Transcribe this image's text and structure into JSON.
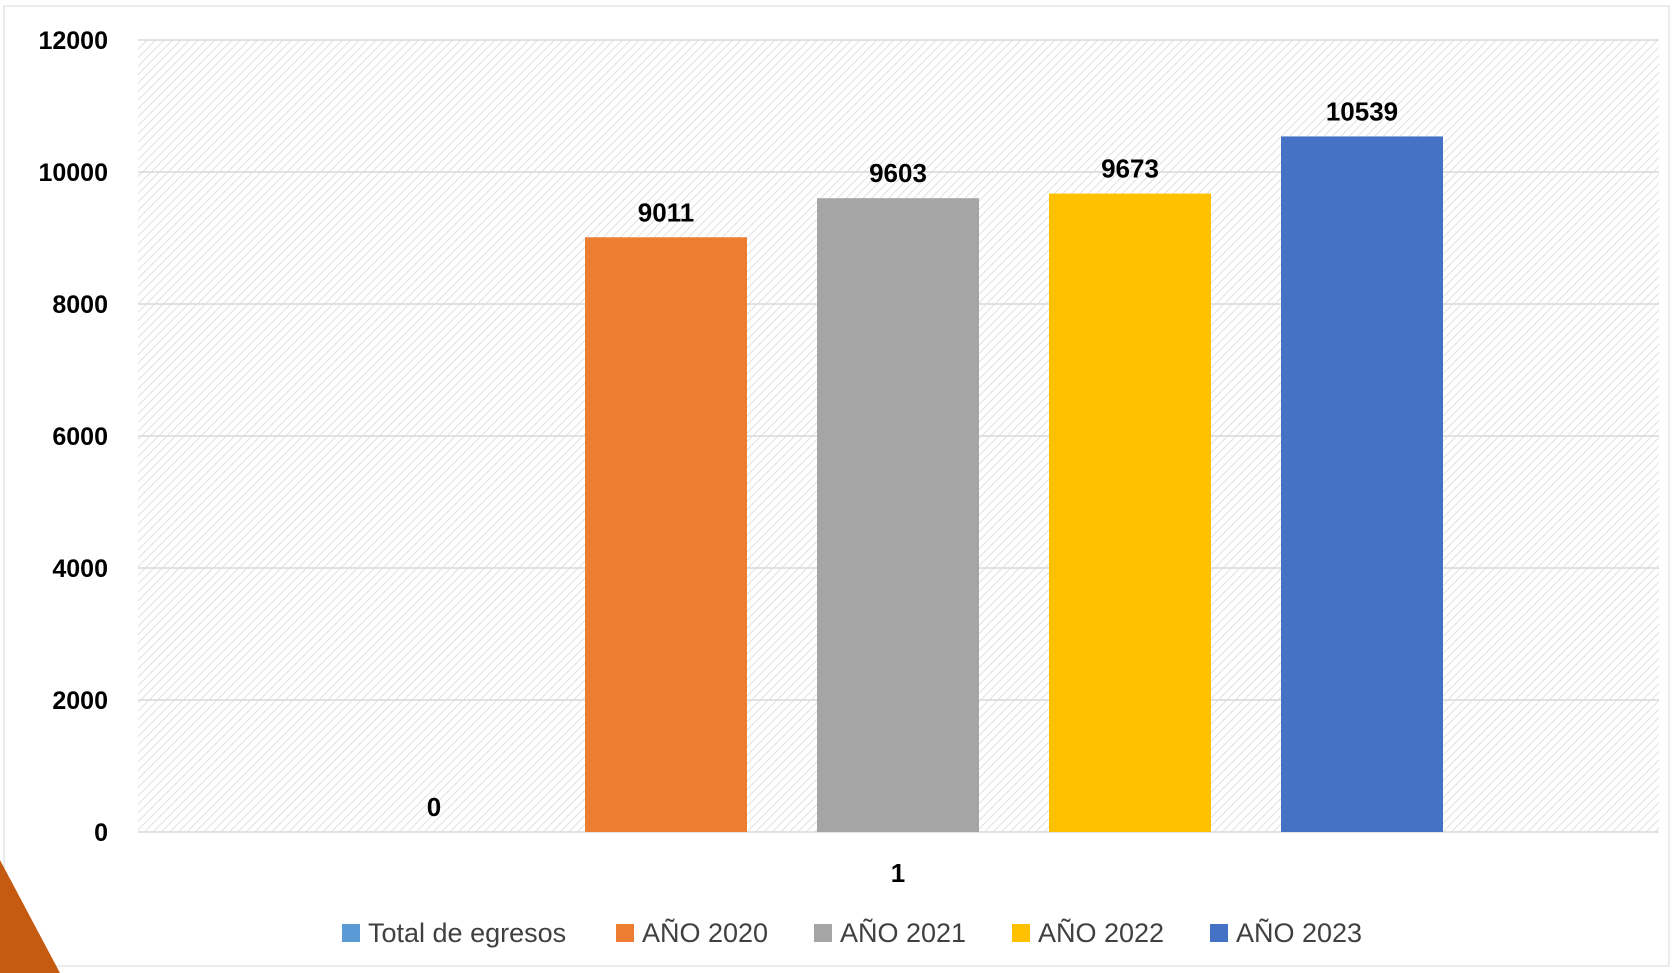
{
  "chart_data": {
    "type": "bar",
    "categories": [
      "1"
    ],
    "series": [
      {
        "name": "Total de egresos",
        "values": [
          0
        ],
        "color": "#5B9BD5"
      },
      {
        "name": "AÑO 2020",
        "values": [
          9011
        ],
        "color": "#ED7D31"
      },
      {
        "name": "AÑO 2021",
        "values": [
          9603
        ],
        "color": "#A5A5A5"
      },
      {
        "name": "AÑO 2022",
        "values": [
          9673
        ],
        "color": "#FFC000"
      },
      {
        "name": "AÑO 2023",
        "values": [
          10539
        ],
        "color": "#4472C4"
      }
    ],
    "yticks": [
      "0",
      "2000",
      "4000",
      "6000",
      "8000",
      "10000",
      "12000"
    ],
    "ylim": [
      0,
      12000
    ],
    "title": "",
    "xlabel": "",
    "ylabel": "",
    "grid": true,
    "legend_position": "bottom",
    "data_labels": true
  },
  "decoration": {
    "corner_color": "#C55A11"
  }
}
